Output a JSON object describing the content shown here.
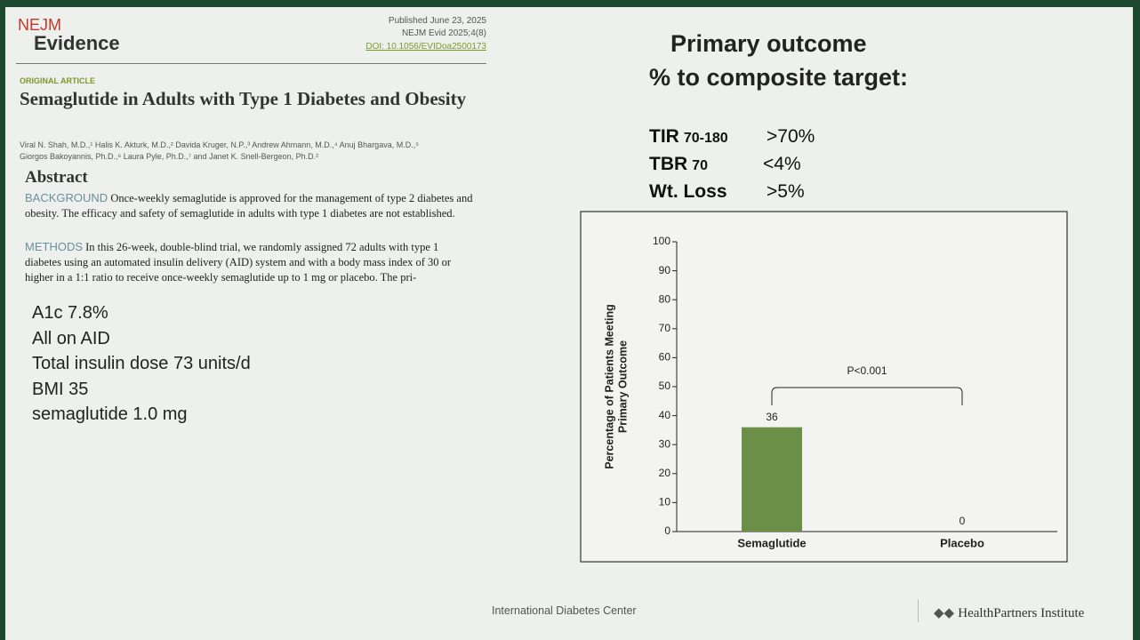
{
  "header": {
    "brand": "NEJM",
    "journal": "Evidence",
    "published": "Published June 23, 2025",
    "citation": "NEJM Evid 2025;4(8)",
    "doi": "DOI: 10.1056/EVIDoa2500173"
  },
  "article": {
    "label": "ORIGINAL ARTICLE",
    "title": "Semaglutide in Adults with Type 1 Diabetes and Obesity",
    "authors": [
      "Viral N. Shah, M.D.,¹ Halis K. Akturk, M.D.,² Davida Kruger, N.P.,³ Andrew Ahmann, M.D.,⁴ Anuj Bhargava, M.D.,⁵",
      "Giorgos Bakoyannis, Ph.D.,⁶ Laura Pyle, Ph.D.,⁷ and Janet K. Snell-Bergeon, Ph.D.²"
    ],
    "abstract_heading": "Abstract",
    "background_label": "BACKGROUND",
    "background_text": "Once-weekly semaglutide is approved for the management of type 2 diabetes and obesity. The efficacy and safety of semaglutide in adults with type 1 diabetes are not established.",
    "methods_label": "METHODS",
    "methods_text": "In this 26-week, double-blind trial, we randomly assigned 72 adults with type 1 diabetes using an automated insulin delivery (AID) system and with a body mass index of 30 or higher in a 1:1 ratio to receive once-weekly semaglutide up to 1 mg or placebo. The pri-"
  },
  "notes": [
    "A1c 7.8%",
    "All on AID",
    "Total insulin dose 73 units/d",
    "BMI 35",
    "semaglutide 1.0 mg"
  ],
  "outcome": {
    "title": [
      "Primary outcome",
      "% to composite target:"
    ],
    "targets": [
      {
        "name": "TIR",
        "sub": "70-180",
        "value": ">70%"
      },
      {
        "name": "TBR",
        "sub": "70",
        "value": "<4%"
      },
      {
        "name": "Wt. Loss",
        "value": ">5%"
      }
    ]
  },
  "chart_data": {
    "type": "bar",
    "ylabel": [
      "Percentage of Patients Meeting",
      "Primary Outcome"
    ],
    "categories": [
      "Semaglutide",
      "Placebo"
    ],
    "values": [
      36,
      0
    ],
    "color": "#6b8f47",
    "ylim": [
      0,
      100
    ],
    "yticks": [
      0,
      10,
      20,
      30,
      40,
      50,
      60,
      70,
      80,
      90,
      100
    ],
    "annotation": "P<0.001"
  },
  "footer": {
    "center": "International Diabetes Center",
    "logo": "HealthPartners Institute"
  }
}
